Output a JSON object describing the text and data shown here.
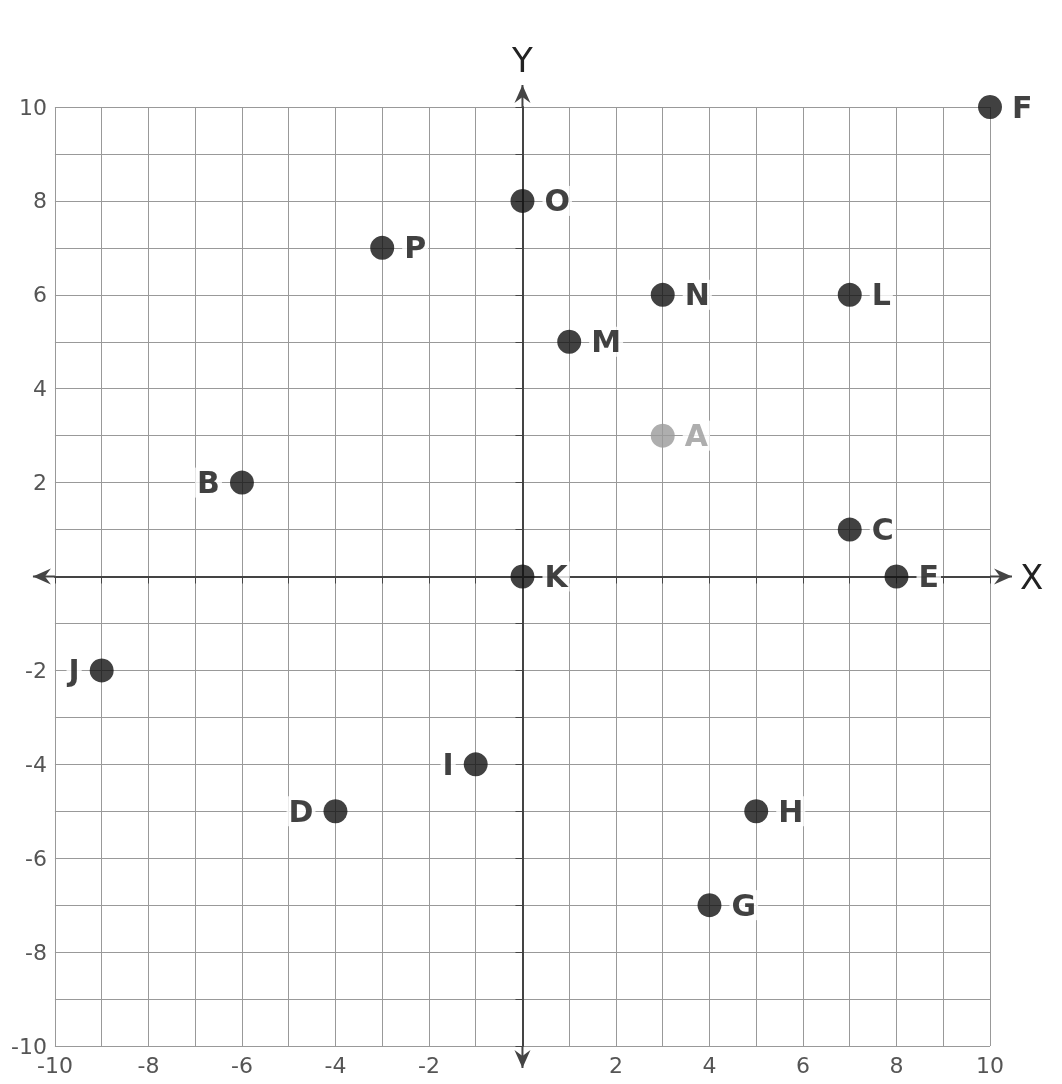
{
  "chart_data": {
    "type": "scatter",
    "xlabel": "X",
    "ylabel": "Y",
    "x": [
      10,
      0,
      -3,
      3,
      7,
      1,
      3,
      -6,
      7,
      8,
      0,
      -9,
      -1,
      -4,
      5,
      4
    ],
    "values": [
      10,
      8,
      7,
      6,
      6,
      5,
      3,
      2,
      1,
      0,
      0,
      -2,
      -4,
      -5,
      -5,
      -7
    ],
    "value_labels": [
      "F",
      "O",
      "P",
      "N",
      "L",
      "M",
      "A",
      "B",
      "C",
      "E",
      "K",
      "J",
      "I",
      "D",
      "H",
      "G"
    ],
    "colors": [
      "#111111",
      "#111111",
      "#111111",
      "#111111",
      "#111111",
      "#111111",
      "#9a9a9a",
      "#111111",
      "#111111",
      "#111111",
      "#111111",
      "#111111",
      "#111111",
      "#111111",
      "#111111",
      "#111111"
    ],
    "xlim": [
      -10,
      10
    ],
    "ylim": [
      -10,
      10
    ],
    "xticks": [
      -10,
      {
        "value": -9,
        "label": null
      },
      -8,
      {
        "value": -7,
        "label": null
      },
      -6,
      {
        "value": -5,
        "label": null
      },
      -4,
      {
        "value": -3,
        "label": null
      },
      -2,
      {
        "value": -1,
        "label": null
      },
      {
        "value": 0,
        "label": null
      },
      {
        "value": 1,
        "label": null
      },
      2,
      {
        "value": 3,
        "label": null
      },
      4,
      {
        "value": 5,
        "label": null
      },
      6,
      {
        "value": 7,
        "label": null
      },
      8,
      {
        "value": 9,
        "label": null
      },
      10
    ],
    "yticks": [
      -10,
      {
        "value": -9,
        "label": null
      },
      -8,
      {
        "value": -7,
        "label": null
      },
      -6,
      {
        "value": -5,
        "label": null
      },
      -4,
      {
        "value": -3,
        "label": null
      },
      -2,
      {
        "value": -1,
        "label": null
      },
      {
        "value": 0,
        "label": null
      },
      {
        "value": 1,
        "label": null
      },
      2,
      {
        "value": 3,
        "label": null
      },
      4,
      {
        "value": 5,
        "label": null
      },
      6,
      {
        "value": 7,
        "label": null
      },
      8,
      {
        "value": 9,
        "label": null
      },
      10
    ],
    "grid": true,
    "marker": "circle"
  }
}
